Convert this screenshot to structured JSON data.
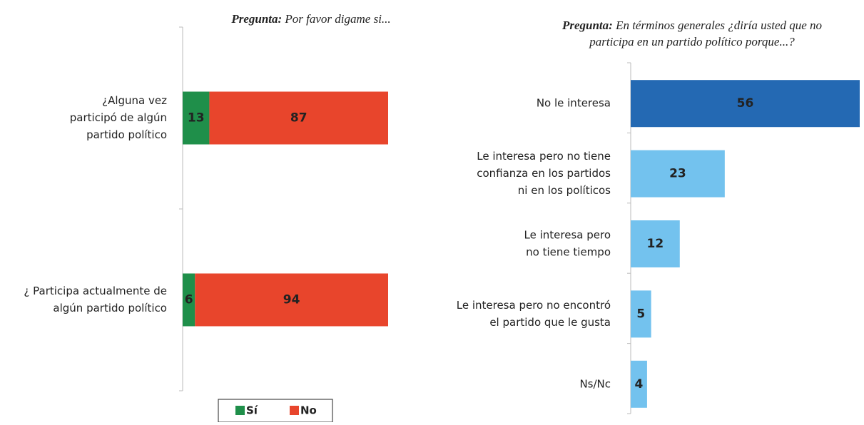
{
  "chart_data": [
    {
      "type": "stacked-bar",
      "title_prefix": "Pregunta:",
      "title": "Por favor digame si...",
      "categories": [
        [
          "¿Alguna vez",
          "participó de algún",
          "partido político"
        ],
        [
          "¿ Participa actualmente de",
          "algún partido político"
        ]
      ],
      "series": [
        {
          "name": "Sí",
          "color": "#1f8f4a",
          "values": [
            13,
            6
          ]
        },
        {
          "name": "No",
          "color": "#e8452c",
          "values": [
            87,
            94
          ]
        }
      ],
      "xlim": [
        0,
        100
      ]
    },
    {
      "type": "bar",
      "title_prefix": "Pregunta:",
      "title": [
        "En términos generales ¿diría usted que no",
        "participa en un partido político porque...?"
      ],
      "categories": [
        [
          "No le interesa"
        ],
        [
          "Le interesa pero no tiene",
          "confianza en los partidos",
          "ni en los políticos"
        ],
        [
          "Le interesa pero",
          "no tiene tiempo"
        ],
        [
          "Le interesa pero no encontró",
          "el partido que le gusta"
        ],
        [
          "Ns/Nc"
        ]
      ],
      "values": [
        56,
        23,
        12,
        5,
        4
      ],
      "colors": [
        "#2469b3",
        "#73c2ee",
        "#73c2ee",
        "#73c2ee",
        "#73c2ee"
      ],
      "xlim": [
        0,
        56
      ]
    }
  ]
}
